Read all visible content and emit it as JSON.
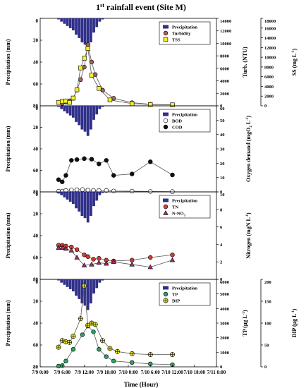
{
  "chart_data": {
    "type": "bar",
    "title": "1",
    "title_sup": "st",
    "title_rest": " rainfall event (Site M)",
    "xlabel": "Time (Hour)",
    "x_ticks": [
      "7/9 0:00",
      "7/9 6:00",
      "7/9 12:00",
      "7/9 18:00",
      "7/10 0:00",
      "7/10 6:00",
      "7/10 12:00",
      "7/10 18:00",
      "7/11 0:00"
    ],
    "xlim_hours": [
      0,
      48
    ],
    "rain_ylabel": "Precipitation (mm)",
    "rain_ylim": [
      0,
      80
    ],
    "rain_ticks": [
      "0",
      "20",
      "40",
      "60",
      "80"
    ],
    "precipitation": {
      "name": "Precipitation",
      "hours": [
        5.0,
        5.8,
        6.6,
        7.4,
        8.2,
        9.0,
        9.8,
        10.6,
        11.4,
        12.2,
        13.0,
        13.8,
        14.6,
        15.4,
        16.2,
        17.0
      ],
      "values": [
        1,
        3,
        5,
        7,
        9,
        11,
        15,
        18,
        22,
        24,
        28,
        22,
        13,
        8,
        3,
        1
      ]
    },
    "panels": [
      {
        "id": "turbidity",
        "legend": [
          {
            "name": "Precipitation",
            "marker": "bar",
            "color": "#30308a"
          },
          {
            "name": "Turbidity",
            "marker": "circle",
            "color": "#a0655a"
          },
          {
            "name": "TSS",
            "marker": "square",
            "color": "#f3ef2c"
          }
        ],
        "axes": [
          {
            "label": "Turb. (NTU)",
            "ylim": [
              0,
              14000
            ],
            "ticks": [
              "0",
              "2000",
              "4000",
              "6000",
              "8000",
              "10000",
              "12000",
              "14000"
            ]
          },
          {
            "label": "SS (mg L",
            "label_sup": "-1",
            "label_end": ")",
            "ylim": [
              0,
              18000
            ],
            "ticks": [
              "0",
              "2000",
              "4000",
              "6000",
              "8000",
              "10000",
              "12000",
              "14000",
              "16000",
              "18000"
            ]
          }
        ],
        "series": [
          {
            "name": "Turbidity",
            "axis": 0,
            "marker": "circle",
            "color": "#a0655a",
            "x": [
              6.0,
              7.0,
              8.0,
              9.0,
              10.0,
              11.0,
              12.0,
              13.0,
              14.0,
              15.0,
              17.0,
              20.0,
              25.0,
              30.0,
              36.0
            ],
            "y": [
              400,
              600,
              800,
              1200,
              2500,
              4200,
              6200,
              9800,
              7000,
              5000,
              2500,
              1200,
              500,
              250,
              150
            ]
          },
          {
            "name": "TSS",
            "axis": 1,
            "marker": "square",
            "color": "#f3ef2c",
            "x": [
              5.0,
              6.0,
              7.0,
              8.0,
              9.0,
              10.0,
              11.0,
              12.0,
              13.0,
              14.0,
              16.0,
              19.0,
              25.0,
              30.0,
              36.0
            ],
            "y": [
              700,
              900,
              1000,
              700,
              1600,
              3300,
              7800,
              9800,
              11800,
              6300,
              3600,
              1200,
              450,
              250,
              200
            ]
          }
        ]
      },
      {
        "id": "oxygen",
        "legend": [
          {
            "name": "Precipitation",
            "marker": "bar",
            "color": "#30308a"
          },
          {
            "name": "BOD",
            "marker": "circle",
            "color": "#ffffff"
          },
          {
            "name": "COD",
            "marker": "circle",
            "color": "#111111"
          }
        ],
        "axes": [
          {
            "label": "Oxygen demand (mgO",
            "label_sub": "2",
            "label_mid": " L",
            "label_sup": "-1",
            "label_end": ")",
            "ylim": [
              0,
              60
            ],
            "ticks": [
              "0",
              "10",
              "20",
              "30",
              "40",
              "50",
              "60"
            ]
          }
        ],
        "series": [
          {
            "name": "BOD",
            "axis": 0,
            "marker": "circle",
            "color": "#ffffff",
            "x": [
              5.0,
              6.0,
              7.0,
              8.5,
              10.0,
              11.5,
              13.0,
              14.5,
              16.0,
              18.0,
              20.0,
              25.0,
              30.0,
              36.0
            ],
            "y": [
              0.4,
              0.5,
              1.0,
              1.4,
              1.5,
              1.6,
              1.2,
              1.0,
              1.0,
              1.0,
              0.6,
              0.5,
              0.3,
              0.2
            ]
          },
          {
            "name": "COD",
            "axis": 0,
            "marker": "circle",
            "color": "#111111",
            "x": [
              5.0,
              6.0,
              7.0,
              8.5,
              10.0,
              12.0,
              14.0,
              16.0,
              18.0,
              20.0,
              25.0,
              30.0,
              36.0
            ],
            "y": [
              8.5,
              7.0,
              11.5,
              22.0,
              22.5,
              23.2,
              22.8,
              19.5,
              22.0,
              11.5,
              12.5,
              21.0,
              11.8
            ]
          }
        ]
      },
      {
        "id": "nitrogen",
        "legend": [
          {
            "name": "Precipitation",
            "marker": "bar",
            "color": "#30308a"
          },
          {
            "name": "TN",
            "marker": "circle",
            "color": "#d93a30"
          },
          {
            "name": "N-NO",
            "name_sub": "3",
            "marker": "triangle",
            "color": "#a02f6c"
          }
        ],
        "axes": [
          {
            "label": "Nitrogen (mgN L",
            "label_sup": "-1",
            "label_end": ")",
            "ylim": [
              0,
              10
            ],
            "ticks": [
              "0",
              "2",
              "4",
              "6",
              "8",
              "10"
            ]
          }
        ],
        "series": [
          {
            "name": "TN",
            "axis": 0,
            "marker": "circle",
            "color": "#d93a30",
            "x": [
              5.0,
              6.0,
              7.0,
              8.5,
              10.0,
              12.0,
              13.0,
              14.5,
              16.0,
              18.0,
              20.0,
              25.0,
              30.0,
              36.0
            ],
            "y": [
              3.9,
              3.9,
              3.8,
              3.7,
              3.4,
              2.8,
              2.6,
              2.3,
              2.4,
              2.2,
              2.1,
              2.2,
              2.5,
              2.8
            ]
          },
          {
            "name": "N-NO3",
            "axis": 0,
            "marker": "triangle",
            "color": "#a02f6c",
            "x": [
              5.0,
              6.0,
              7.0,
              8.5,
              10.0,
              12.0,
              14.0,
              16.0,
              18.0,
              20.0,
              25.0,
              30.0,
              36.0
            ],
            "y": [
              3.6,
              3.6,
              3.5,
              3.3,
              2.5,
              1.6,
              1.7,
              1.9,
              1.8,
              2.0,
              1.7,
              1.4,
              2.2
            ]
          }
        ]
      },
      {
        "id": "phosphorus",
        "legend": [
          {
            "name": "Precipitation",
            "marker": "bar",
            "color": "#30308a"
          },
          {
            "name": "TP",
            "marker": "circle",
            "color": "#2fa064"
          },
          {
            "name": "DIP",
            "marker": "crosscircle",
            "color": "#f3ef2c"
          }
        ],
        "axes": [
          {
            "label": "TP (μg L",
            "label_sup": "-1",
            "label_end": ")",
            "ylim": [
              0,
              6000
            ],
            "ticks": [
              "0",
              "1000",
              "2000",
              "3000",
              "4000",
              "5000",
              "6000"
            ]
          },
          {
            "label": "DIP (μg L",
            "label_sup": "-1",
            "label_end": ")",
            "ylim": [
              0,
              200
            ],
            "ticks": [
              "0",
              "50",
              "100",
              "150",
              "200"
            ]
          }
        ],
        "series": [
          {
            "name": "TP",
            "axis": 0,
            "marker": "circle",
            "color": "#2fa064",
            "x": [
              5.0,
              6.0,
              7.0,
              9.0,
              11.5,
              13.0,
              14.5,
              16.0,
              18.0,
              20.0,
              25.0,
              30.0,
              36.0
            ],
            "y": [
              50,
              80,
              400,
              1200,
              2200,
              2800,
              2400,
              1200,
              700,
              400,
              300,
              200,
              150
            ]
          },
          {
            "name": "DIP",
            "axis": 1,
            "marker": "crosscircle",
            "color": "#f3ef2c",
            "x": [
              5.0,
              6.0,
              7.0,
              8.0,
              9.0,
              11.0,
              12.0,
              13.0,
              14.0,
              15.0,
              17.0,
              19.0,
              21.0,
              25.0,
              30.0,
              36.0
            ],
            "y": [
              45,
              60,
              57,
              56,
              70,
              110,
              185,
              95,
              100,
              97,
              60,
              42,
              35,
              30,
              28,
              28
            ]
          }
        ]
      }
    ]
  }
}
